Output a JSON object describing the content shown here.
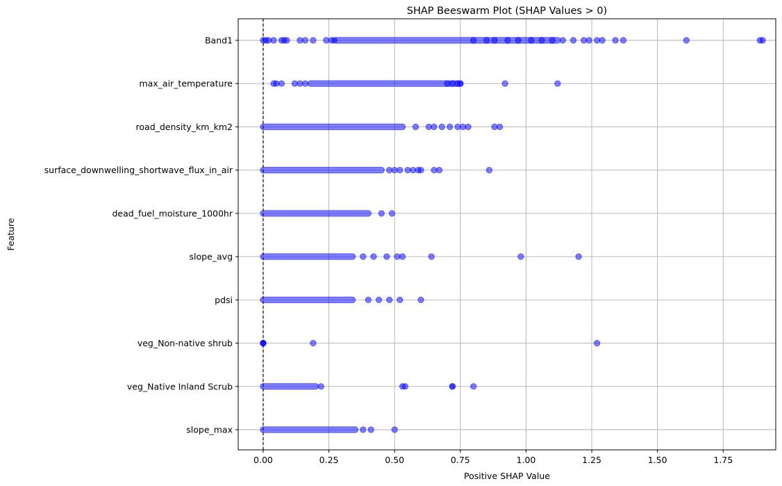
{
  "chart_data": {
    "type": "scatter",
    "title": "SHAP Beeswarm Plot (SHAP Values > 0)",
    "xlabel": "Positive SHAP Value",
    "ylabel": "Feature",
    "xlim": [
      -0.095,
      1.95
    ],
    "xticks": [
      0.0,
      0.25,
      0.5,
      0.75,
      1.0,
      1.25,
      1.5,
      1.75
    ],
    "xtick_labels": [
      "0.00",
      "0.25",
      "0.50",
      "0.75",
      "1.00",
      "1.25",
      "1.50",
      "1.75"
    ],
    "grid": true,
    "reference_line": {
      "x": 0,
      "style": "dashed",
      "color": "#000000"
    },
    "marker_color": "#0000ff",
    "marker_alpha": 0.5,
    "features": [
      "Band1",
      "max_air_temperature",
      "road_density_km_km2",
      "surface_downwelling_shortwave_flux_in_air",
      "dead_fuel_moisture_1000hr",
      "slope_avg",
      "pdsi",
      "veg_Non-native shrub",
      "veg_Native Inland Scrub",
      "slope_max"
    ],
    "series": [
      {
        "feature": "Band1",
        "ranges": [
          [
            0.28,
            0.8
          ],
          [
            0.8,
            1.12
          ]
        ],
        "values": [
          0.0,
          0.01,
          0.02,
          0.04,
          0.07,
          0.08,
          0.09,
          0.14,
          0.16,
          0.19,
          0.24,
          0.26,
          0.27,
          0.85,
          0.88,
          0.93,
          0.97,
          1.02,
          1.06,
          1.1,
          1.14,
          1.18,
          1.22,
          1.24,
          1.27,
          1.29,
          1.34,
          1.37,
          1.61,
          1.89,
          1.9
        ]
      },
      {
        "feature": "max_air_temperature",
        "ranges": [
          [
            0.18,
            0.75
          ]
        ],
        "values": [
          0.04,
          0.05,
          0.07,
          0.12,
          0.14,
          0.16,
          0.7,
          0.72,
          0.74,
          0.75,
          0.92,
          1.12
        ]
      },
      {
        "feature": "road_density_km_km2",
        "ranges": [
          [
            0.0,
            0.53
          ]
        ],
        "values": [
          0.58,
          0.63,
          0.65,
          0.68,
          0.71,
          0.74,
          0.76,
          0.78,
          0.88,
          0.9
        ]
      },
      {
        "feature": "surface_downwelling_shortwave_flux_in_air",
        "ranges": [
          [
            0.0,
            0.45
          ]
        ],
        "values": [
          0.48,
          0.5,
          0.52,
          0.55,
          0.57,
          0.59,
          0.6,
          0.65,
          0.67,
          0.86
        ]
      },
      {
        "feature": "dead_fuel_moisture_1000hr",
        "ranges": [
          [
            0.0,
            0.4
          ]
        ],
        "values": [
          0.45,
          0.49
        ]
      },
      {
        "feature": "slope_avg",
        "ranges": [
          [
            0.0,
            0.34
          ]
        ],
        "values": [
          0.38,
          0.42,
          0.47,
          0.51,
          0.53,
          0.64,
          0.98,
          1.2
        ]
      },
      {
        "feature": "pdsi",
        "ranges": [
          [
            0.0,
            0.34
          ]
        ],
        "values": [
          0.4,
          0.44,
          0.48,
          0.52,
          0.6
        ]
      },
      {
        "feature": "veg_Non-native shrub",
        "ranges": [],
        "values": [
          0.0,
          0.0,
          0.0,
          0.19,
          1.27
        ]
      },
      {
        "feature": "veg_Native Inland Scrub",
        "ranges": [
          [
            0.0,
            0.2
          ]
        ],
        "values": [
          0.22,
          0.53,
          0.54,
          0.72,
          0.72,
          0.8
        ]
      },
      {
        "feature": "slope_max",
        "ranges": [
          [
            0.0,
            0.35
          ]
        ],
        "values": [
          0.38,
          0.41,
          0.5
        ]
      }
    ]
  }
}
